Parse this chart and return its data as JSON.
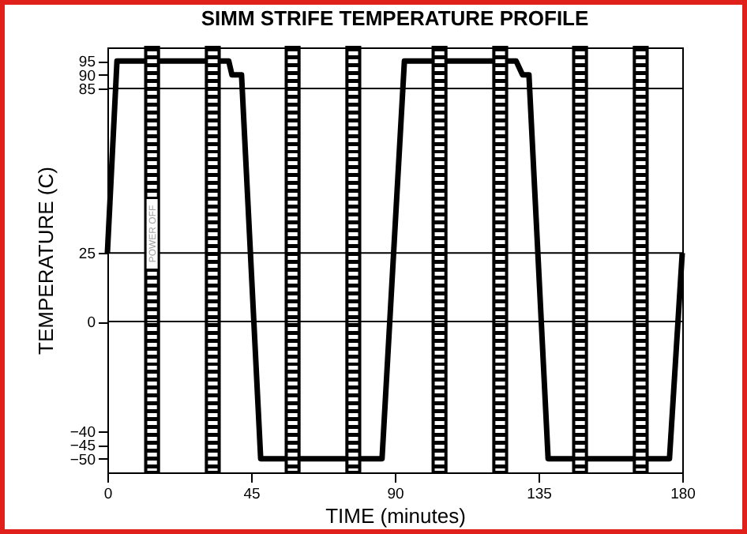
{
  "chart_data": {
    "type": "line",
    "title": "SIMM STRIFE TEMPERATURE PROFILE",
    "xlabel": "TIME (minutes)",
    "ylabel": "TEMPERATURE (C)",
    "x": [
      0,
      3,
      38,
      39,
      42,
      48,
      86,
      93,
      128,
      130,
      132,
      138,
      176,
      180
    ],
    "series": [
      {
        "color": "#000000",
        "values": [
          25,
          95,
          95,
          90,
          90,
          -50,
          -50,
          95,
          95,
          90,
          90,
          -50,
          -50,
          25
        ]
      }
    ],
    "xlim": [
      0,
      180
    ],
    "xticks": [
      0,
      45,
      90,
      135,
      180
    ],
    "ylim": [
      -55,
      100
    ],
    "yticks": [
      -50,
      -45,
      -40,
      0,
      25,
      85,
      90,
      95
    ],
    "grid": false,
    "marker": "none",
    "line_style": "solid",
    "ref_lines": [
      {
        "axis": "y",
        "value": 85,
        "color": "#000000"
      },
      {
        "axis": "y",
        "value": 25,
        "color": "#000000"
      },
      {
        "axis": "y",
        "value": 0,
        "color": "#000000"
      }
    ],
    "bands": [
      {
        "axis": "x",
        "from": 12,
        "to": 16
      },
      {
        "axis": "x",
        "from": 31,
        "to": 35
      },
      {
        "axis": "x",
        "from": 56,
        "to": 60
      },
      {
        "axis": "x",
        "from": 75,
        "to": 79
      },
      {
        "axis": "x",
        "from": 102,
        "to": 106
      },
      {
        "axis": "x",
        "from": 121,
        "to": 125
      },
      {
        "axis": "x",
        "from": 146,
        "to": 150
      },
      {
        "axis": "x",
        "from": 165,
        "to": 169
      }
    ],
    "annotations": [
      {
        "text": "POWER OFF",
        "x": 14,
        "y": 32
      }
    ]
  }
}
